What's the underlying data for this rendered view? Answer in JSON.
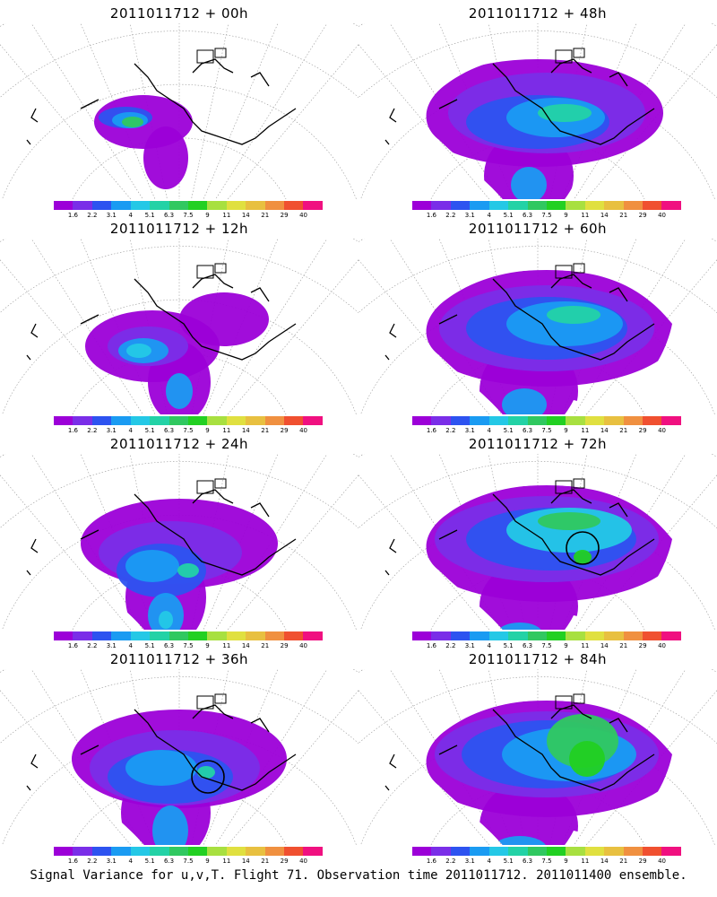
{
  "caption": "Signal Variance for u,v,T. Flight 71. Observation time 2011011712. 2011011400 ensemble.",
  "colorbar": {
    "colors": [
      "#9c00d8",
      "#7a2ee8",
      "#2d53f0",
      "#1a9bf2",
      "#24c8e6",
      "#23d2a6",
      "#30c860",
      "#22d022",
      "#a8e040",
      "#e0e040",
      "#e8c040",
      "#f09040",
      "#f05030",
      "#f01080"
    ],
    "labels": [
      "1.6",
      "2.2",
      "3.1",
      "4",
      "5.1",
      "6.3",
      "7.5",
      "9",
      "11",
      "14",
      "21",
      "29",
      "40"
    ]
  },
  "panels": [
    {
      "title": "2011011712 + 00h",
      "hour": 0,
      "circle": false
    },
    {
      "title": "2011011712 + 48h",
      "hour": 48,
      "circle": false
    },
    {
      "title": "2011011712 + 12h",
      "hour": 12,
      "circle": false
    },
    {
      "title": "2011011712 + 60h",
      "hour": 60,
      "circle": false
    },
    {
      "title": "2011011712 + 24h",
      "hour": 24,
      "circle": false
    },
    {
      "title": "2011011712 + 72h",
      "hour": 72,
      "circle": true
    },
    {
      "title": "2011011712 + 36h",
      "hour": 36,
      "circle": true
    },
    {
      "title": "2011011712 + 84h",
      "hour": 84,
      "circle": false
    }
  ]
}
